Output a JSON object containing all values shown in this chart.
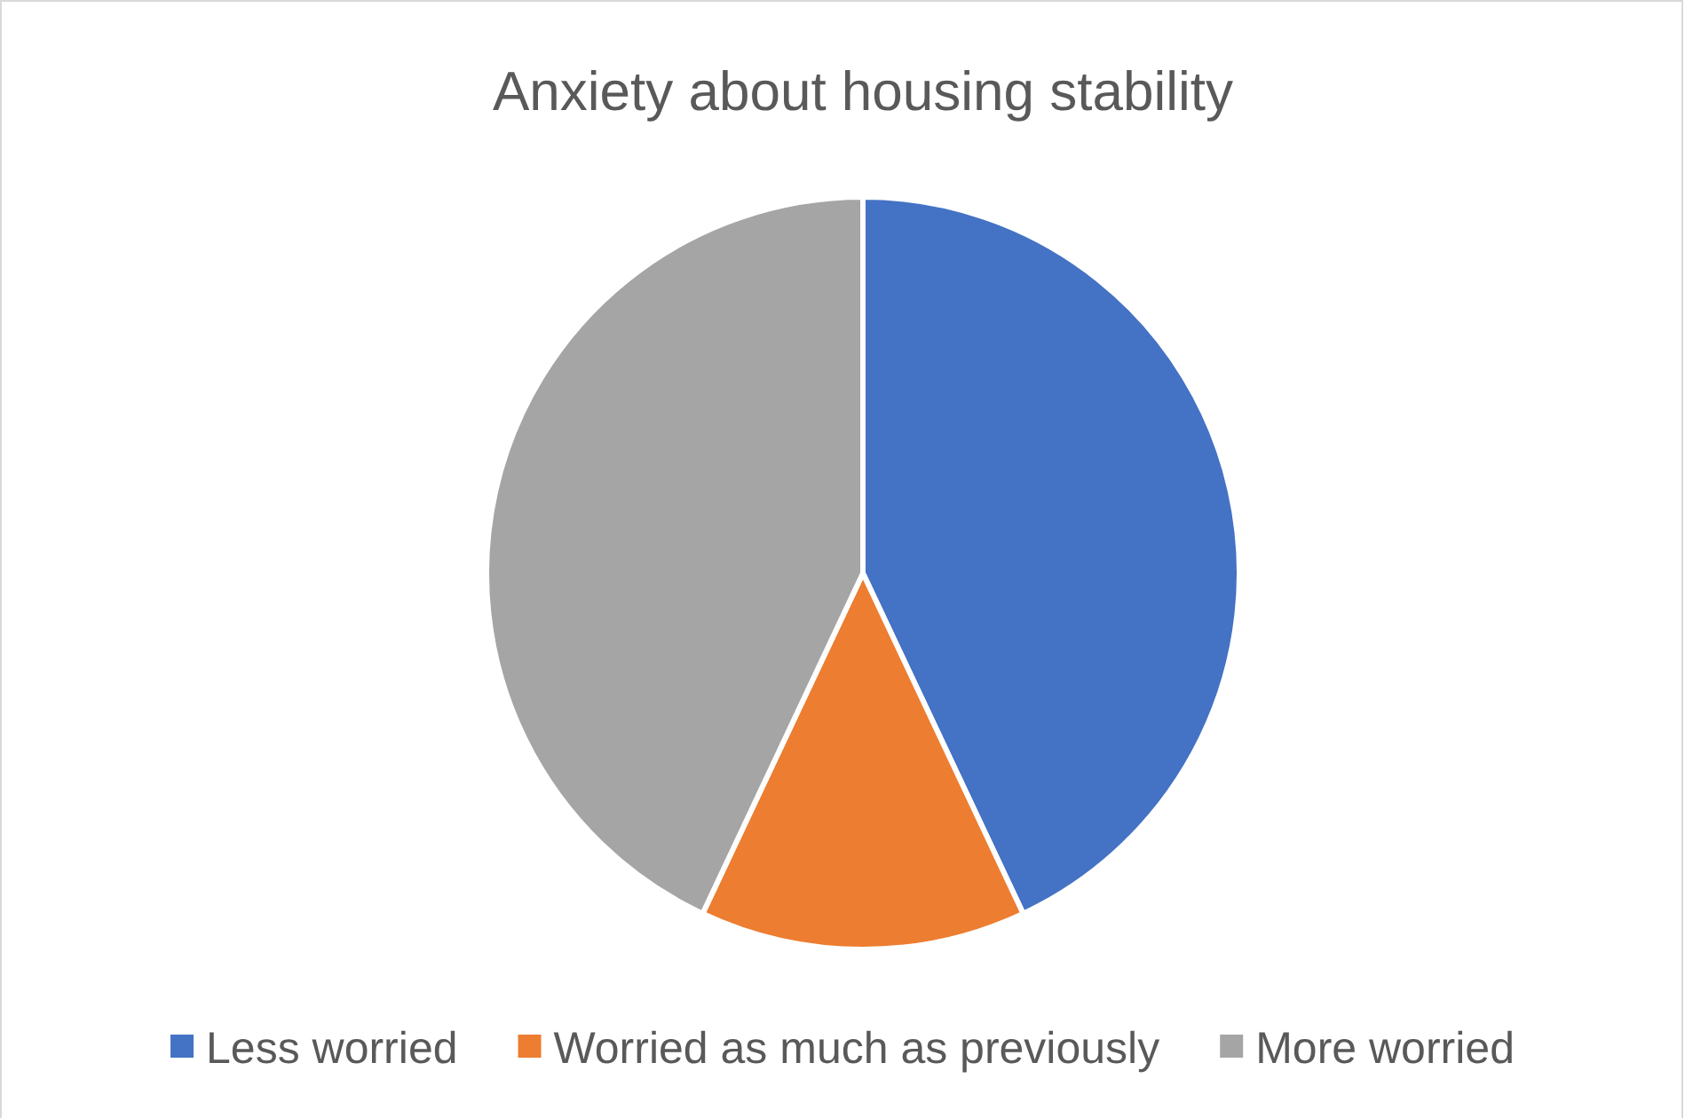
{
  "chart_data": {
    "type": "pie",
    "title": "Anxiety about housing stability",
    "categories": [
      "Less worried",
      "Worried as much as previously",
      "More worried"
    ],
    "values": [
      43,
      14,
      43
    ],
    "colors": [
      "#4472c4",
      "#ed7d31",
      "#a5a5a5"
    ],
    "legend": "bottom"
  }
}
